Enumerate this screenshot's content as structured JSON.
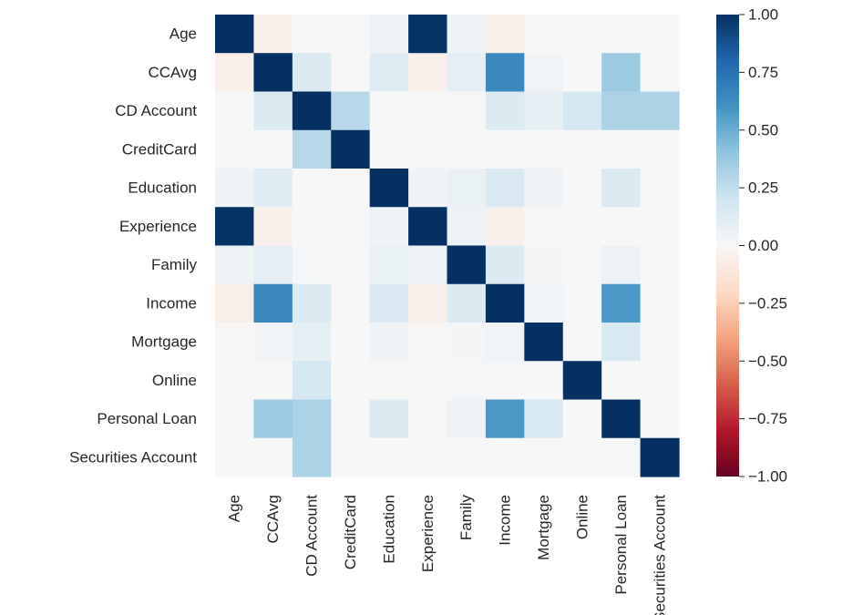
{
  "chart_data": {
    "type": "heatmap",
    "title": "",
    "xlabel": "",
    "ylabel": "",
    "colormap": "RdBu",
    "vmin": -1.0,
    "vmax": 1.0,
    "rows": [
      "Age",
      "CCAvg",
      "CD Account",
      "CreditCard",
      "Education",
      "Experience",
      "Family",
      "Income",
      "Mortgage",
      "Online",
      "Personal Loan",
      "Securities Account"
    ],
    "columns": [
      "Age",
      "CCAvg",
      "CD Account",
      "CreditCard",
      "Education",
      "Experience",
      "Family",
      "Income",
      "Mortgage",
      "Online",
      "Personal Loan",
      "Securities Account"
    ],
    "values": [
      [
        1.0,
        -0.05,
        0.01,
        0.01,
        0.04,
        0.99,
        0.05,
        -0.06,
        -0.01,
        0.01,
        0.01,
        0.0
      ],
      [
        -0.05,
        1.0,
        0.14,
        0.0,
        0.12,
        -0.05,
        0.1,
        0.65,
        0.03,
        0.0,
        0.37,
        0.0
      ],
      [
        0.01,
        0.14,
        1.0,
        0.28,
        0.0,
        0.01,
        0.01,
        0.14,
        0.09,
        0.18,
        0.32,
        0.32
      ],
      [
        0.01,
        0.0,
        0.28,
        1.0,
        0.0,
        0.01,
        0.01,
        0.0,
        0.0,
        0.0,
        0.0,
        0.0
      ],
      [
        0.04,
        0.12,
        0.0,
        0.0,
        1.0,
        0.04,
        0.07,
        0.15,
        0.04,
        0.0,
        0.14,
        0.0
      ],
      [
        0.99,
        -0.05,
        0.01,
        0.01,
        0.04,
        1.0,
        0.06,
        -0.05,
        -0.01,
        0.01,
        0.0,
        0.0
      ],
      [
        0.05,
        0.1,
        0.01,
        0.01,
        0.07,
        0.06,
        1.0,
        0.14,
        0.02,
        0.01,
        0.06,
        0.0
      ],
      [
        -0.06,
        0.65,
        0.14,
        0.0,
        0.15,
        -0.05,
        0.14,
        1.0,
        0.03,
        0.01,
        0.58,
        0.0
      ],
      [
        -0.01,
        0.03,
        0.09,
        0.0,
        0.04,
        -0.01,
        0.02,
        0.03,
        1.0,
        0.0,
        0.16,
        0.0
      ],
      [
        0.01,
        0.0,
        0.18,
        0.0,
        0.0,
        0.01,
        0.01,
        0.01,
        0.0,
        1.0,
        0.0,
        0.0
      ],
      [
        0.01,
        0.37,
        0.32,
        0.0,
        0.14,
        0.0,
        0.06,
        0.58,
        0.16,
        0.0,
        1.0,
        0.01
      ],
      [
        0.0,
        0.0,
        0.32,
        0.0,
        0.0,
        0.0,
        0.0,
        0.0,
        0.0,
        0.0,
        0.01,
        1.0
      ]
    ],
    "colorbar": {
      "ticks": [
        1.0,
        0.75,
        0.5,
        0.25,
        0.0,
        -0.25,
        -0.5,
        -0.75,
        -1.0
      ],
      "tick_labels": [
        "1.00",
        "0.75",
        "0.50",
        "0.25",
        "0.00",
        "−0.25",
        "−0.50",
        "−0.75",
        "−1.00"
      ]
    }
  }
}
